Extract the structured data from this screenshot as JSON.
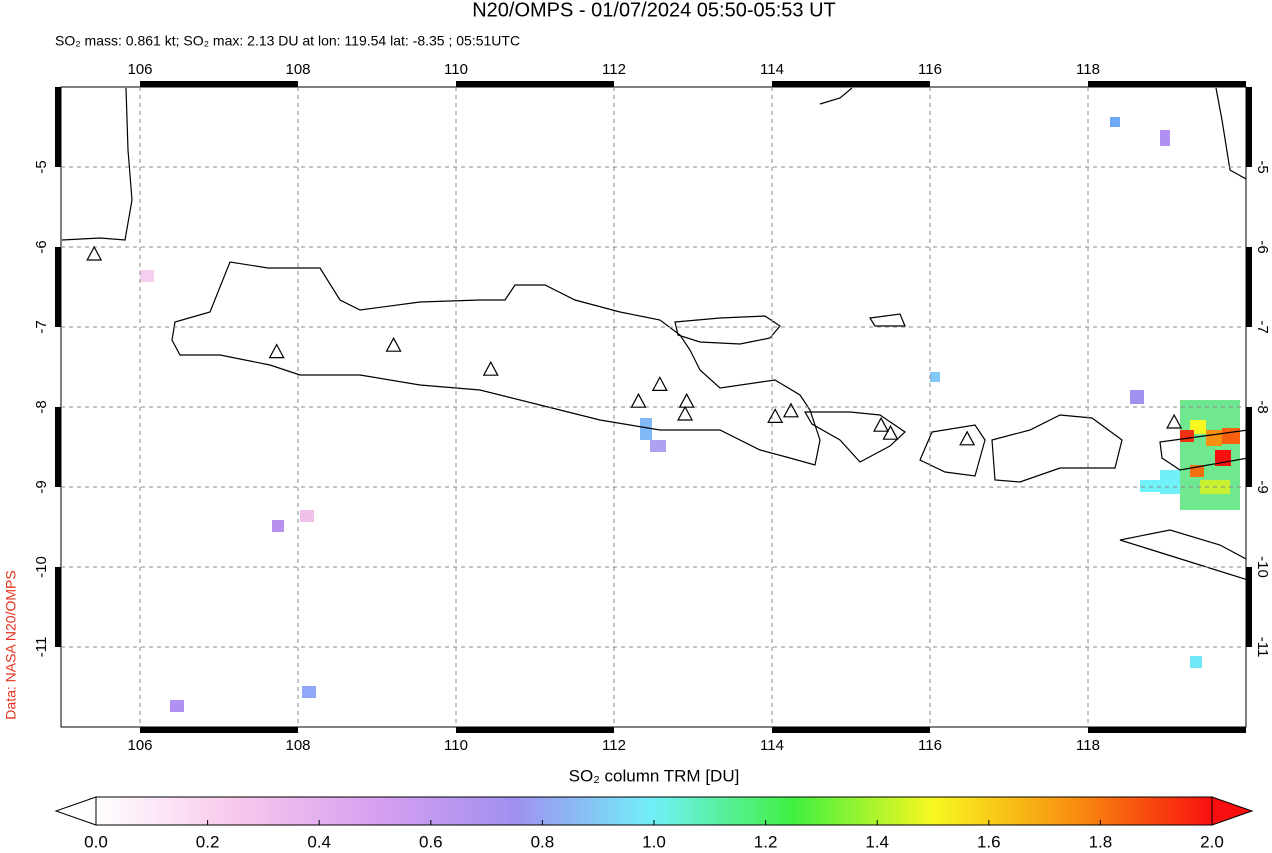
{
  "header": {
    "title": "N20/OMPS - 01/07/2024 05:50-05:53 UT",
    "subtitle": "SO₂ mass: 0.861 kt; SO₂ max: 2.13 DU at lon: 119.54 lat: -8.35 ; 05:51UTC"
  },
  "map": {
    "lonlim": [
      105,
      120
    ],
    "latlim": [
      -12,
      -4
    ],
    "lonticks": [
      106,
      108,
      110,
      112,
      114,
      116,
      118
    ],
    "latticks": [
      -5,
      -6,
      -7,
      -8,
      -9,
      -10,
      -11
    ],
    "grid": true,
    "volcanoes": {
      "lon": [
        105.42,
        107.73,
        109.21,
        110.44,
        112.31,
        112.58,
        112.92,
        112.9,
        114.04,
        114.24,
        115.38,
        115.5,
        116.47,
        119.09
      ],
      "lat": [
        -6.1,
        -7.32,
        -7.24,
        -7.54,
        -7.94,
        -7.73,
        -7.94,
        -8.1,
        -8.13,
        -8.06,
        -8.24,
        -8.34,
        -8.41,
        -8.2
      ]
    }
  },
  "colorbar": {
    "label": "SO₂ column TRM [DU]",
    "lim": [
      0,
      2
    ],
    "ticks": [
      {
        "value": 0,
        "label": "0.0"
      },
      0.2,
      0.4,
      0.6,
      0.8,
      {
        "value": 1,
        "label": "1.0"
      },
      1.2,
      1.4,
      1.6,
      1.8,
      {
        "value": 2,
        "label": "2.0"
      }
    ],
    "colors": [
      "#ffffff",
      "#f8c8ec",
      "#d8a0f0",
      "#a090f0",
      "#70f0f8",
      "#40f040",
      "#f8f820",
      "#f89010",
      "#f81010"
    ]
  },
  "credit": "Data: NASA N20/OMPS"
}
